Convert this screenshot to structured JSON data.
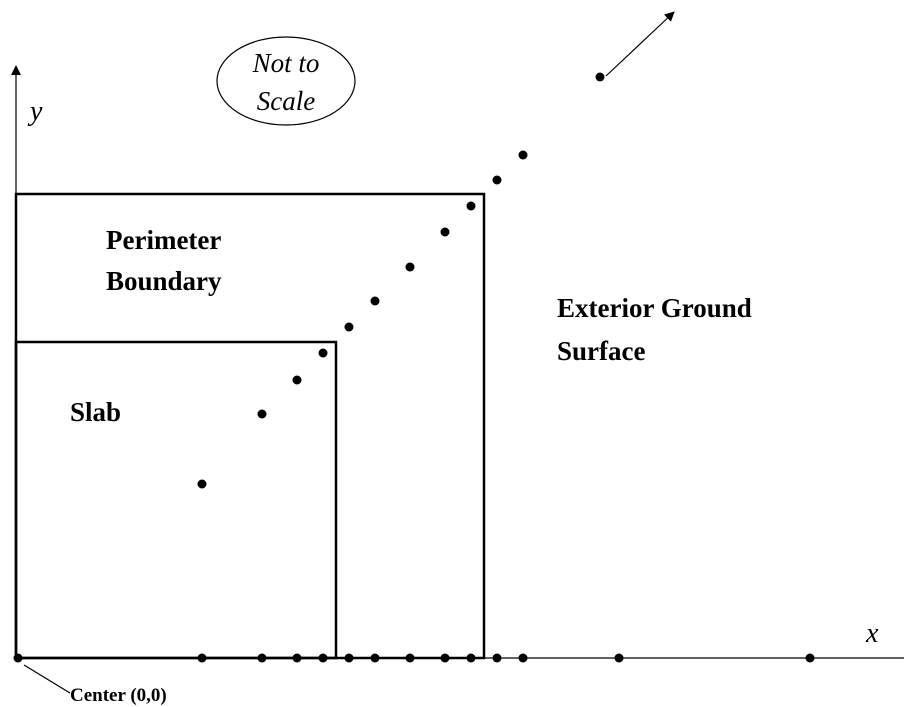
{
  "labels": {
    "y_axis": "y",
    "x_axis": "x",
    "note_line1": "Not to",
    "note_line2": "Scale",
    "perimeter_line1": "Perimeter",
    "perimeter_line2": "Boundary",
    "exterior_line1": "Exterior Ground",
    "exterior_line2": "Surface",
    "slab": "Slab",
    "center": "Center (0,0)"
  },
  "colors": {
    "stroke": "#000000",
    "background": "#ffffff"
  }
}
